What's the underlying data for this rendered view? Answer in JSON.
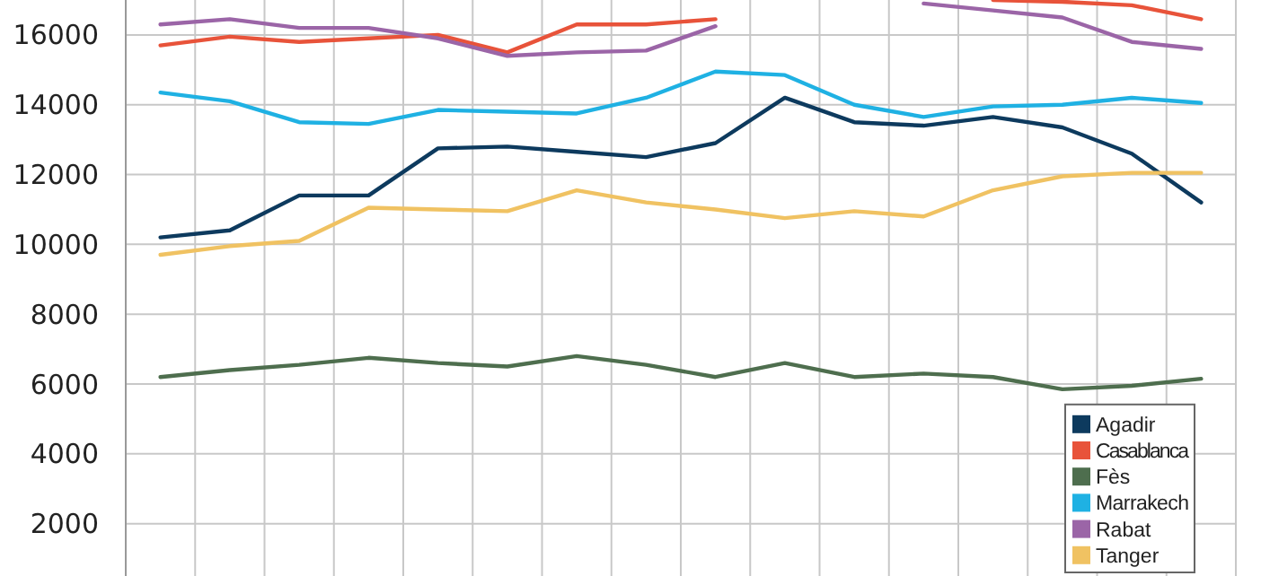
{
  "chart_data": {
    "type": "line",
    "categories": [
      null,
      null,
      null,
      null,
      null,
      null,
      null,
      null,
      null,
      null,
      null,
      null,
      null,
      null,
      null,
      null
    ],
    "ylim": [
      500,
      17000
    ],
    "yticks": [
      2000,
      4000,
      6000,
      8000,
      10000,
      12000,
      14000,
      16000
    ],
    "grid": true,
    "legend": "bottom right",
    "marker": "none",
    "line_style": "solid",
    "series": [
      {
        "name": "Agadir",
        "color": "#0d3a5e",
        "values": [
          10200,
          10400,
          11400,
          11400,
          12750,
          12800,
          12650,
          12500,
          12900,
          14200,
          13500,
          13400,
          13650,
          13350,
          12600,
          11200
        ]
      },
      {
        "name": "Casablanca",
        "color": "#e8533a",
        "values": [
          15700,
          15950,
          15800,
          15900,
          16000,
          15500,
          16300,
          16300,
          16450,
          null,
          null,
          null,
          17000,
          16950,
          16850,
          16450
        ]
      },
      {
        "name": "Fès",
        "color": "#4e6e4e",
        "values": [
          6200,
          6400,
          6550,
          6750,
          6600,
          6500,
          6800,
          6550,
          6200,
          6600,
          6200,
          6300,
          6200,
          5850,
          5950,
          6150
        ]
      },
      {
        "name": "Marrakech",
        "color": "#1fb1e3",
        "values": [
          14350,
          14100,
          13500,
          13450,
          13850,
          13800,
          13750,
          14200,
          14950,
          14850,
          14000,
          13650,
          13950,
          14000,
          14200,
          14050
        ]
      },
      {
        "name": "Rabat",
        "color": "#9b65a7",
        "values": [
          16300,
          16450,
          16200,
          16200,
          15900,
          15400,
          15500,
          15550,
          16250,
          null,
          null,
          16900,
          16700,
          16500,
          15800,
          15600
        ]
      },
      {
        "name": "Tanger",
        "color": "#f0c262",
        "values": [
          9700,
          9950,
          10100,
          11050,
          11000,
          10950,
          11550,
          11200,
          11000,
          10750,
          10950,
          10800,
          11550,
          11950,
          12050,
          12050
        ]
      }
    ]
  }
}
